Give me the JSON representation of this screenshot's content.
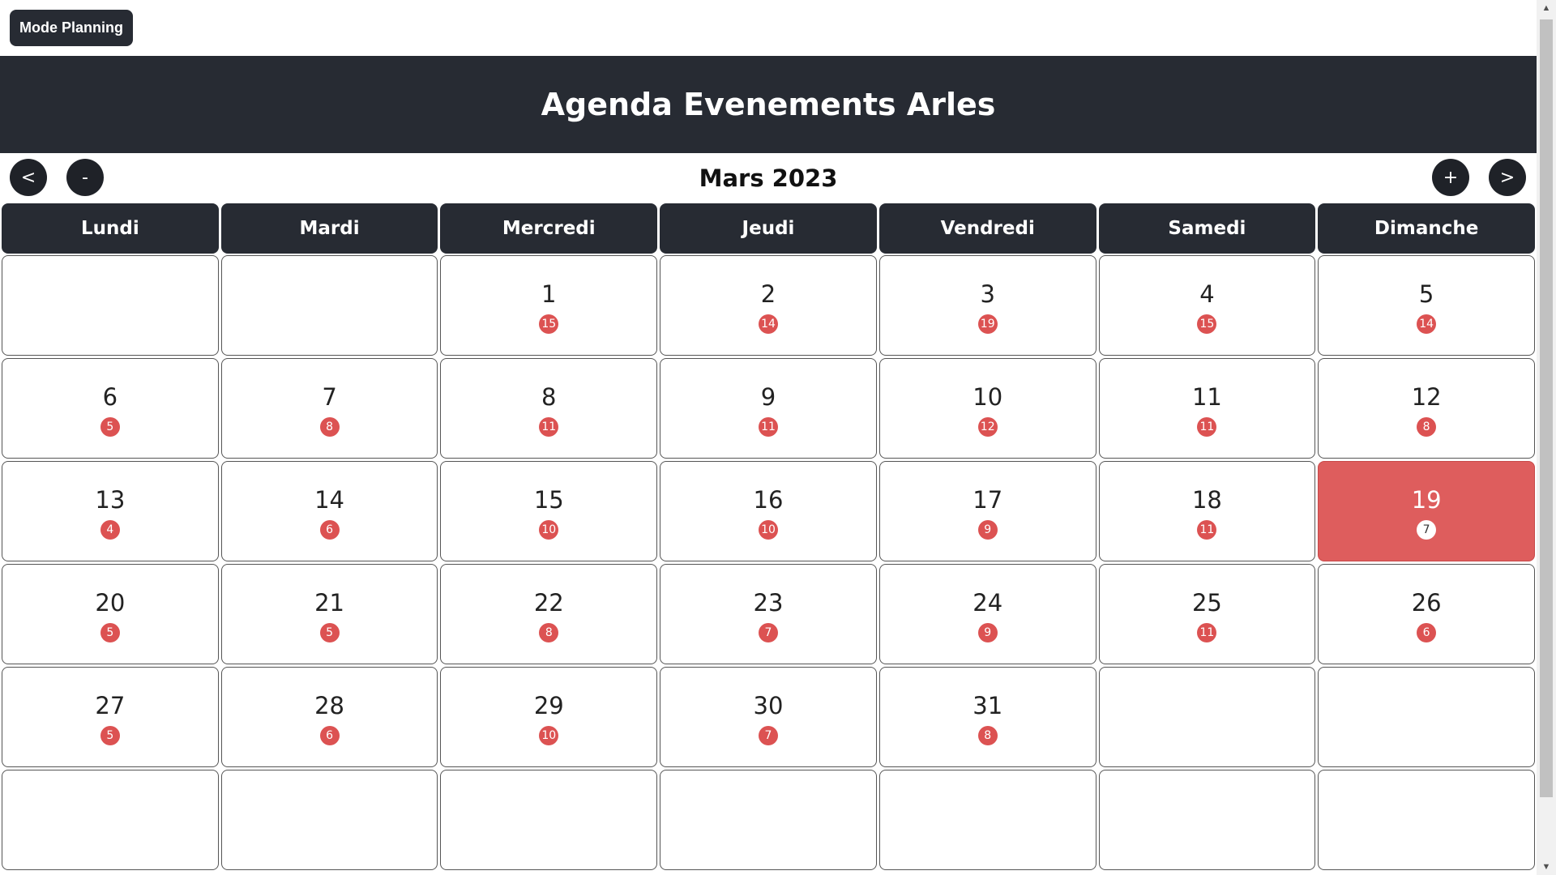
{
  "toolbar": {
    "mode_label": "Mode Planning"
  },
  "header": {
    "title": "Agenda Evenements Arles"
  },
  "nav": {
    "prev_label": "<",
    "minus_label": "-",
    "plus_label": "+",
    "next_label": ">",
    "month_title": "Mars 2023"
  },
  "weekdays": [
    "Lundi",
    "Mardi",
    "Mercredi",
    "Jeudi",
    "Vendredi",
    "Samedi",
    "Dimanche"
  ],
  "calendar": {
    "leading_empty": 2,
    "trailing_empty": 9,
    "today": 19,
    "days": [
      {
        "day": "1",
        "count": "15"
      },
      {
        "day": "2",
        "count": "14"
      },
      {
        "day": "3",
        "count": "19"
      },
      {
        "day": "4",
        "count": "15"
      },
      {
        "day": "5",
        "count": "14"
      },
      {
        "day": "6",
        "count": "5"
      },
      {
        "day": "7",
        "count": "8"
      },
      {
        "day": "8",
        "count": "11"
      },
      {
        "day": "9",
        "count": "11"
      },
      {
        "day": "10",
        "count": "12"
      },
      {
        "day": "11",
        "count": "11"
      },
      {
        "day": "12",
        "count": "8"
      },
      {
        "day": "13",
        "count": "4"
      },
      {
        "day": "14",
        "count": "6"
      },
      {
        "day": "15",
        "count": "10"
      },
      {
        "day": "16",
        "count": "10"
      },
      {
        "day": "17",
        "count": "9"
      },
      {
        "day": "18",
        "count": "11"
      },
      {
        "day": "19",
        "count": "7"
      },
      {
        "day": "20",
        "count": "5"
      },
      {
        "day": "21",
        "count": "5"
      },
      {
        "day": "22",
        "count": "8"
      },
      {
        "day": "23",
        "count": "7"
      },
      {
        "day": "24",
        "count": "9"
      },
      {
        "day": "25",
        "count": "11"
      },
      {
        "day": "26",
        "count": "6"
      },
      {
        "day": "27",
        "count": "5"
      },
      {
        "day": "28",
        "count": "6"
      },
      {
        "day": "29",
        "count": "10"
      },
      {
        "day": "30",
        "count": "7"
      },
      {
        "day": "31",
        "count": "8"
      }
    ]
  },
  "colors": {
    "dark": "#272b33",
    "accent": "#de5d5d",
    "badge": "#dc5252"
  },
  "icons": {
    "scroll_up": "triangle-up-icon",
    "scroll_down": "triangle-down-icon"
  }
}
